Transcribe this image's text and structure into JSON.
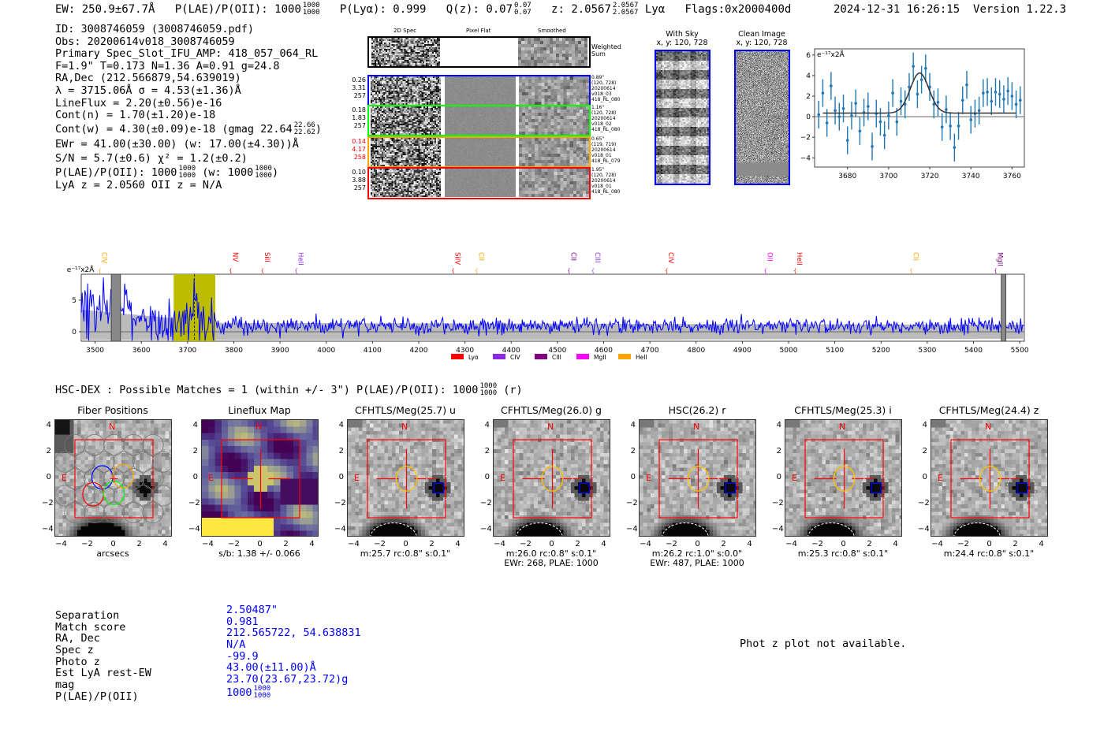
{
  "header": {
    "ew": "EW: 250.9±67.7Å",
    "plae": "P(LAE)/P(OII): 1000",
    "plae_hi": "1000",
    "plae_lo": "1000",
    "plya": "P(Lyα): 0.999",
    "qz": "Q(z): 0.07",
    "qz_hi": "0.07",
    "qz_lo": "0.07",
    "z": "z: 2.0567",
    "z_hi": "2.0567",
    "z_lo": "2.0567",
    "z_line": "Lyα",
    "flags": "Flags:0x2000400d",
    "timestamp": "2024-12-31 16:26:15",
    "version": "Version 1.22.3"
  },
  "info": {
    "id": "ID: 3008746059 (3008746059.pdf)",
    "obs": "Obs: 20200614v018_3008746059",
    "primary": "Primary Spec_Slot_IFU_AMP: 418_057_064_RL",
    "params": "F=1.9\"  T=0.173  N=1.36  A=0.91  g=24.8",
    "radec": "RA,Dec (212.566879,54.639019)",
    "lambda": "λ = 3715.06Å   σ = 4.53(±1.36)Å",
    "lineflux": "LineFlux = 2.20(±0.56)e-16",
    "contn": "Cont(n) = 1.70(±1.20)e-18",
    "contw": "Cont(w) = 4.30(±0.09)e-18 (gmag 22.64",
    "contw_hi": "22.66",
    "contw_lo": "22.62",
    "contw_end": ")",
    "ewr": "EWr = 41.00(±30.00) (w: 17.00(±4.30))Å",
    "sn": "S/N = 5.7(±0.6)   χ² = 1.2(±0.2)",
    "plae": "P(LAE)/P(OII): 1000",
    "plae_hi": "1000",
    "plae_lo": "1000",
    "plae_w": "(w: 1000",
    "plae_w_hi": "1000",
    "plae_w_lo": "1000",
    "plae_w_end": ")",
    "lyaz": "LyA z = 2.0560   OII z = N/A"
  },
  "spec2d": {
    "col_titles": [
      "2D Spec",
      "Pixel Flat",
      "Smoothed"
    ],
    "weighted_label": "Weighted Sum",
    "rows": [
      {
        "left": [
          "0.26",
          "3.31",
          "257"
        ],
        "left_color": "#000000",
        "right": [
          "0.89\"",
          "(120, 728)",
          "20200614",
          "v018_03",
          "418_RL_080"
        ],
        "color": "#0000ff"
      },
      {
        "left": [
          "0.18",
          "1.83",
          "257"
        ],
        "left_color": "#000000",
        "right": [
          "1.16\"",
          "(120, 728)",
          "20200614",
          "v018_02",
          "418_RL_080"
        ],
        "color": "#00ff00"
      },
      {
        "left": [
          "0.14",
          "4.17",
          "258"
        ],
        "left_color": "#ff0000",
        "right": [
          "0.65\"",
          "(119, 719)",
          "20200614",
          "v018_01",
          "418_RL_079"
        ],
        "color": "#ffa500"
      },
      {
        "left": [
          "0.10",
          "3.88",
          "257"
        ],
        "left_color": "#000000",
        "right": [
          "1.95\"",
          "(120, 728)",
          "20200614",
          "v018_01",
          "418_RL_080"
        ],
        "color": "#ff0000"
      }
    ]
  },
  "ccd": {
    "with_sky_title": "With Sky",
    "with_sky_coords": "x, y: 120, 728",
    "clean_title": "Clean Image",
    "clean_coords": "x, y: 120, 728"
  },
  "chart_data": [
    {
      "type": "scatter",
      "title": "",
      "ylabel": "e⁻¹⁷x2Å",
      "xlim": [
        3664,
        3766
      ],
      "ylim": [
        -4.9,
        6.6
      ],
      "xticks": [
        "3680",
        "3700",
        "3720",
        "3740",
        "3760"
      ],
      "yticks": [
        "6",
        "4",
        "2",
        "0",
        "−2",
        "−4"
      ],
      "x": [
        3666,
        3668,
        3670,
        3672,
        3674,
        3676,
        3678,
        3680,
        3682,
        3684,
        3686,
        3688,
        3690,
        3692,
        3694,
        3696,
        3698,
        3700,
        3702,
        3704,
        3706,
        3708,
        3710,
        3712,
        3714,
        3716,
        3718,
        3720,
        3722,
        3724,
        3726,
        3728,
        3730,
        3732,
        3734,
        3736,
        3738,
        3740,
        3742,
        3744,
        3746,
        3748,
        3750,
        3752,
        3754,
        3756,
        3758,
        3760,
        3762,
        3764
      ],
      "y": [
        0.2,
        2.3,
        -0.6,
        3.0,
        0.6,
        0.0,
        0.8,
        -2.3,
        0.1,
        1.3,
        -1.4,
        0.4,
        1.0,
        -2.9,
        0.3,
        -0.5,
        -1.8,
        0.1,
        2.3,
        -0.5,
        1.5,
        1.2,
        2.9,
        4.9,
        2.2,
        3.6,
        4.7,
        2.9,
        1.2,
        1.4,
        -1.0,
        0.7,
        -0.9,
        -3.0,
        -0.9,
        1.6,
        3.1,
        -0.3,
        0.3,
        0.6,
        2.3,
        2.4,
        1.5,
        2.4,
        2.2,
        1.7,
        2.5,
        2.0,
        1.2,
        1.6
      ],
      "yerr": 1.35,
      "fit": {
        "type": "gaussian",
        "center": 3715.06,
        "sigma": 4.53,
        "amplitude": 3.9,
        "baseline": 0.35,
        "x_range": [
          3668,
          3762
        ]
      }
    },
    {
      "type": "line",
      "ylabel": "e⁻¹⁷x2Å",
      "xlim": [
        3470,
        5510
      ],
      "ylim": [
        -1.5,
        9.1
      ],
      "xticks": [
        "3500",
        "3600",
        "3700",
        "3800",
        "3900",
        "4000",
        "4100",
        "4200",
        "4300",
        "4400",
        "4500",
        "4600",
        "4700",
        "4800",
        "4900",
        "5000",
        "5100",
        "5200",
        "5300",
        "5400",
        "5500"
      ],
      "yticks": [
        "5",
        "0"
      ],
      "series_summary": {
        "name": "flux",
        "color": "#0000ff",
        "continuum": 1.0,
        "noise_low_wave": 3.5,
        "noise": 1.2,
        "peak_wave": 3715,
        "peak_value": 5.5
      },
      "highlight_range": [
        3670,
        3760
      ],
      "line_marker": 3715,
      "masked_ranges": [
        [
          3535,
          3555
        ],
        [
          5460,
          5470
        ]
      ],
      "line_labels": [
        {
          "label": "CIV",
          "wave": 3510,
          "color": "#ffa500"
        },
        {
          "label": "NV",
          "wave": 3793,
          "color": "#ff0000"
        },
        {
          "label": "SiII",
          "wave": 3862,
          "color": "#ff0000"
        },
        {
          "label": "HeII",
          "wave": 3935,
          "color": "#8a2be2"
        },
        {
          "label": "SiIV",
          "wave": 4274,
          "color": "#ff0000"
        },
        {
          "label": "CII",
          "wave": 4325,
          "color": "#ffa500"
        },
        {
          "label": "CII",
          "wave": 4525,
          "color": "#800080"
        },
        {
          "label": "CIII",
          "wave": 4577,
          "color": "#8a2be2"
        },
        {
          "label": "CIV",
          "wave": 4736,
          "color": "#ff0000"
        },
        {
          "label": "OII",
          "wave": 4950,
          "color": "#ff00ff"
        },
        {
          "label": "HeII",
          "wave": 5014,
          "color": "#ff0000"
        },
        {
          "label": "CII",
          "wave": 5265,
          "color": "#ffa500"
        },
        {
          "label": "MgII",
          "wave": 5448,
          "color": "#800080"
        }
      ],
      "legend": [
        {
          "label": "Lyα",
          "color": "#ff0000"
        },
        {
          "label": "CIV",
          "color": "#8a2be2"
        },
        {
          "label": "CIII",
          "color": "#800080"
        },
        {
          "label": "MgII",
          "color": "#ff00ff"
        },
        {
          "label": "HeII",
          "color": "#ffa500"
        }
      ],
      "legend_position": "bottom-center"
    }
  ],
  "matches": {
    "headline": "HSC-DEX : Possible Matches = 1 (within +/- 3\")  P(LAE)/P(OII): 1000",
    "headline_hi": "1000",
    "headline_lo": "1000",
    "headline_end": "(r)"
  },
  "cutouts": {
    "ticks": [
      "−4",
      "−2",
      "0",
      "2",
      "4"
    ],
    "north": "N",
    "east": "E",
    "panels": [
      {
        "title": "Fiber Positions",
        "caption": [
          "arcsecs"
        ]
      },
      {
        "title": "Lineflux Map",
        "caption": [
          "s/b: 1.38 +/- 0.066"
        ]
      },
      {
        "title": "CFHTLS/Meg(25.7) u",
        "caption": [
          "m:25.7 rc:0.8\"  s:0.1\""
        ]
      },
      {
        "title": "CFHTLS/Meg(26.0) g",
        "caption": [
          "m:26.0 rc:0.8\"  s:0.1\"",
          "EWr: 268, PLAE: 1000"
        ]
      },
      {
        "title": "HSC(26.2) r",
        "caption": [
          "m:26.2 rc:1.0\"  s:0.0\"",
          "EWr: 487, PLAE: 1000"
        ]
      },
      {
        "title": "CFHTLS/Meg(25.3) i",
        "caption": [
          "m:25.3 rc:0.8\"  s:0.1\""
        ]
      },
      {
        "title": "CFHTLS/Meg(24.4) z",
        "caption": [
          "m:24.4 rc:0.8\"  s:0.1\""
        ]
      }
    ]
  },
  "match_table": {
    "labels": [
      "Separation",
      "Match score",
      "RA, Dec",
      "Spec z",
      "Photo z",
      "Est LyA rest-EW",
      "mag",
      "P(LAE)/P(OII)"
    ],
    "values": [
      "2.50487\"",
      "0.981",
      "212.565722, 54.638831",
      "N/A",
      "-99.9",
      "43.00(±11.00)Å",
      "23.70(23.67,23.72)g",
      "1000"
    ],
    "plae_hi": "1000",
    "plae_lo": "1000"
  },
  "photz_message": "Phot z plot not available."
}
